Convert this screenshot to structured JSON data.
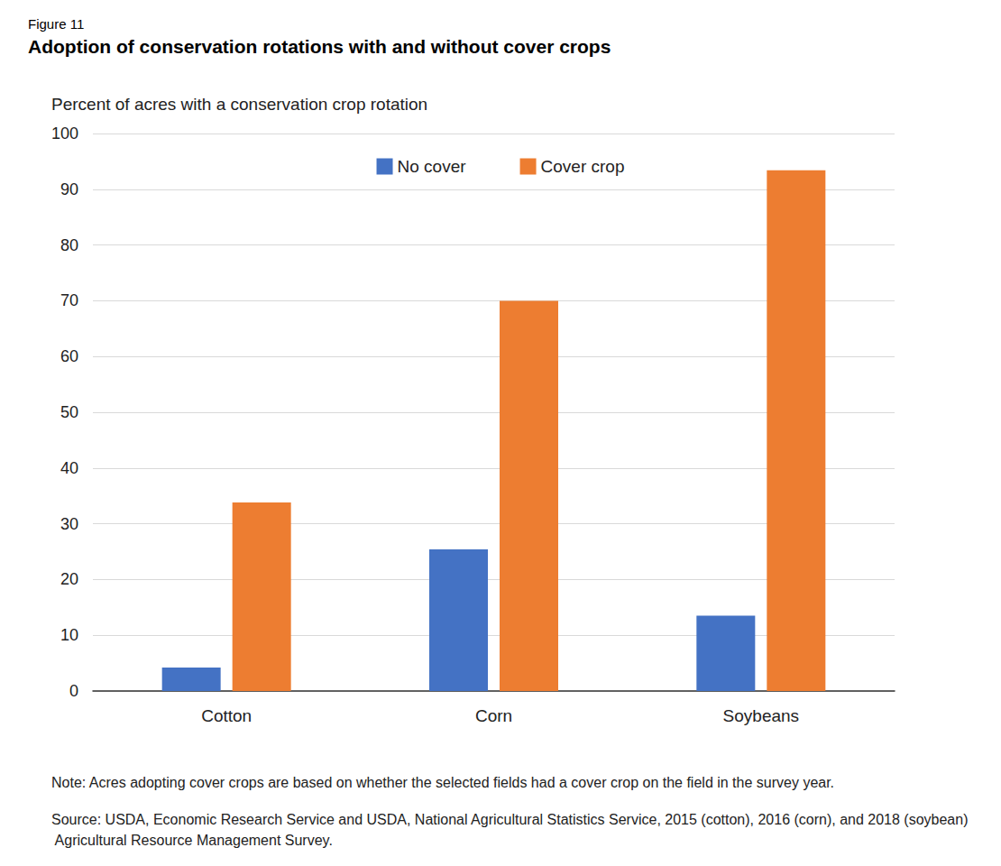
{
  "chart_data": {
    "type": "bar",
    "figure_label": "Figure 11",
    "title": "Adoption of conservation rotations with and without cover crops",
    "y_label": "Percent of acres with a conservation crop rotation",
    "categories": [
      "Cotton",
      "Corn",
      "Soybeans"
    ],
    "series": [
      {
        "name": "No cover",
        "color": "#4472c4",
        "values": [
          4.2,
          25.4,
          13.5
        ]
      },
      {
        "name": "Cover crop",
        "color": "#ed7d31",
        "values": [
          33.8,
          70.0,
          93.4
        ]
      }
    ],
    "ylim": [
      0,
      100
    ],
    "yticks": [
      0,
      10,
      20,
      30,
      40,
      50,
      60,
      70,
      80,
      90,
      100
    ],
    "grid": true,
    "legend": "top",
    "data_labels": false,
    "notes": [
      "Note: Acres adopting cover crops are based on whether the selected fields had a cover crop on the field in the survey year.",
      "Source: USDA, Economic Research Service and USDA, National Agricultural Statistics Service, 2015 (cotton), 2016 (corn), and 2018 (soybean) Agricultural Resource Management Survey."
    ]
  }
}
